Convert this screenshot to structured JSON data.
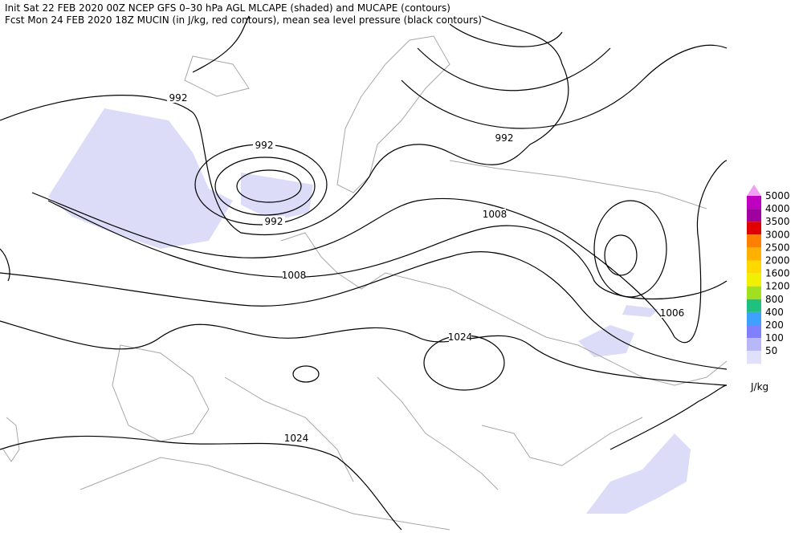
{
  "header": {
    "line1": "Init  Sat 22 FEB 2020 00Z  NCEP GFS 0–30 hPa AGL MLCAPE (shaded) and MUCAPE (contours)",
    "line2": "Fcst Mon 24 FEB 2020 18Z  MUCIN (in J/kg, red contours), mean sea level pressure (black contours)"
  },
  "legend": {
    "unit": "J/kg",
    "levels": [
      {
        "label": "5000",
        "color": "#c000c0"
      },
      {
        "label": "4000",
        "color": "#a000a0"
      },
      {
        "label": "3500",
        "color": "#e00000"
      },
      {
        "label": "3000",
        "color": "#ff8000"
      },
      {
        "label": "2500",
        "color": "#ffb000"
      },
      {
        "label": "2000",
        "color": "#ffd800"
      },
      {
        "label": "1600",
        "color": "#f0f000"
      },
      {
        "label": "1200",
        "color": "#a0e020"
      },
      {
        "label": "800",
        "color": "#20c080"
      },
      {
        "label": "400",
        "color": "#40a0ff"
      },
      {
        "label": "200",
        "color": "#8080ff"
      },
      {
        "label": "100",
        "color": "#b8b8f8"
      },
      {
        "label": "50",
        "color": "#e0e0fa"
      }
    ],
    "top_color": "#f0a0f0"
  },
  "contour_labels": [
    "992",
    "992",
    "992",
    "992",
    "1008",
    "1008",
    "1006",
    "1024",
    "1024"
  ]
}
